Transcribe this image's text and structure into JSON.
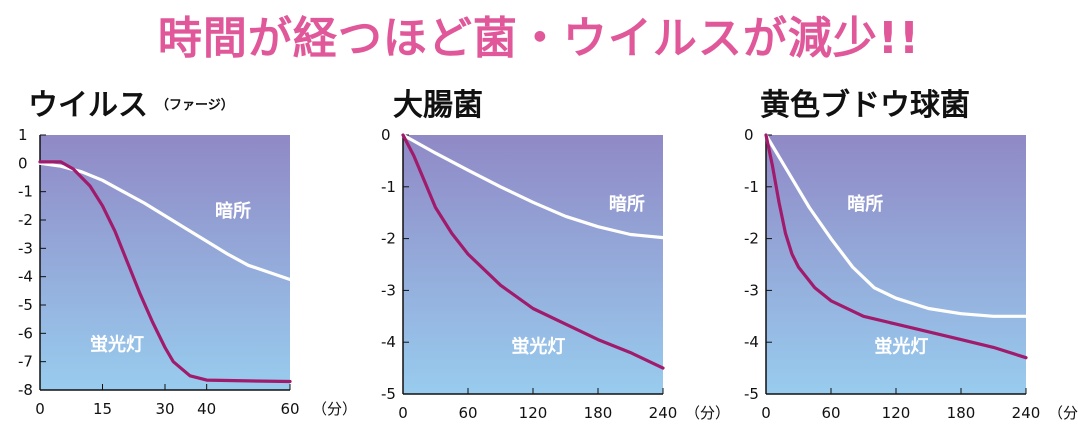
{
  "headline": "時間が経つほど菌・ウイルスが減少!!",
  "colors": {
    "headline": "#e0589a",
    "plot_top": "#9089c6",
    "plot_bottom": "#98ccee",
    "dark_line": "#ffffff",
    "light_line": "#a01b6b"
  },
  "chart_data": [
    {
      "type": "line",
      "title": "ウイルス",
      "subtitle": "（ファージ）",
      "x_unit": "（分）",
      "xlim": [
        0,
        60
      ],
      "ylim": [
        -8,
        1
      ],
      "x_ticks": [
        0,
        15,
        30,
        40,
        60
      ],
      "y_ticks": [
        1,
        0,
        -1,
        -2,
        -3,
        -4,
        -5,
        -6,
        -7,
        -8
      ],
      "series": [
        {
          "name": "暗所",
          "label_at": [
            42,
            -1.9
          ],
          "points": [
            [
              0,
              0
            ],
            [
              5,
              -0.1
            ],
            [
              10,
              -0.3
            ],
            [
              15,
              -0.6
            ],
            [
              20,
              -1.0
            ],
            [
              25,
              -1.4
            ],
            [
              30,
              -1.85
            ],
            [
              35,
              -2.3
            ],
            [
              40,
              -2.75
            ],
            [
              45,
              -3.2
            ],
            [
              50,
              -3.6
            ],
            [
              55,
              -3.85
            ],
            [
              60,
              -4.1
            ]
          ]
        },
        {
          "name": "蛍光灯",
          "label_at": [
            12,
            -6.6
          ],
          "points": [
            [
              0,
              0.05
            ],
            [
              5,
              0.05
            ],
            [
              8,
              -0.2
            ],
            [
              12,
              -0.8
            ],
            [
              15,
              -1.5
            ],
            [
              18,
              -2.4
            ],
            [
              21,
              -3.5
            ],
            [
              24,
              -4.6
            ],
            [
              27,
              -5.6
            ],
            [
              30,
              -6.5
            ],
            [
              32,
              -7.0
            ],
            [
              34,
              -7.25
            ],
            [
              36,
              -7.5
            ],
            [
              40,
              -7.65
            ],
            [
              50,
              -7.68
            ],
            [
              60,
              -7.7
            ]
          ]
        }
      ]
    },
    {
      "type": "line",
      "title": "大腸菌",
      "x_unit": "（分）",
      "xlim": [
        0,
        240
      ],
      "ylim": [
        -5,
        0
      ],
      "x_ticks": [
        0,
        60,
        120,
        180,
        240
      ],
      "y_ticks": [
        0,
        -1,
        -2,
        -3,
        -4,
        -5
      ],
      "series": [
        {
          "name": "暗所",
          "label_at": [
            190,
            -1.45
          ],
          "points": [
            [
              0,
              0
            ],
            [
              30,
              -0.35
            ],
            [
              60,
              -0.68
            ],
            [
              90,
              -1.0
            ],
            [
              120,
              -1.3
            ],
            [
              150,
              -1.57
            ],
            [
              180,
              -1.77
            ],
            [
              210,
              -1.92
            ],
            [
              240,
              -1.98
            ]
          ]
        },
        {
          "name": "蛍光灯",
          "label_at": [
            100,
            -4.2
          ],
          "points": [
            [
              0,
              0
            ],
            [
              10,
              -0.4
            ],
            [
              20,
              -0.9
            ],
            [
              30,
              -1.4
            ],
            [
              45,
              -1.9
            ],
            [
              60,
              -2.3
            ],
            [
              90,
              -2.9
            ],
            [
              120,
              -3.35
            ],
            [
              150,
              -3.65
            ],
            [
              180,
              -3.95
            ],
            [
              210,
              -4.2
            ],
            [
              240,
              -4.5
            ]
          ]
        }
      ]
    },
    {
      "type": "line",
      "title": "黄色ブドウ球菌",
      "x_unit": "（分）",
      "xlim": [
        0,
        240
      ],
      "ylim": [
        -5,
        0
      ],
      "x_ticks": [
        0,
        60,
        120,
        180,
        240
      ],
      "y_ticks": [
        0,
        -1,
        -2,
        -3,
        -4,
        -5
      ],
      "series": [
        {
          "name": "暗所",
          "label_at": [
            75,
            -1.45
          ],
          "points": [
            [
              0,
              0
            ],
            [
              20,
              -0.7
            ],
            [
              40,
              -1.4
            ],
            [
              60,
              -2.0
            ],
            [
              80,
              -2.55
            ],
            [
              100,
              -2.95
            ],
            [
              120,
              -3.15
            ],
            [
              150,
              -3.35
            ],
            [
              180,
              -3.45
            ],
            [
              210,
              -3.5
            ],
            [
              240,
              -3.5
            ]
          ]
        },
        {
          "name": "蛍光灯",
          "label_at": [
            100,
            -4.2
          ],
          "points": [
            [
              0,
              0
            ],
            [
              6,
              -0.6
            ],
            [
              12,
              -1.3
            ],
            [
              18,
              -1.9
            ],
            [
              24,
              -2.3
            ],
            [
              30,
              -2.55
            ],
            [
              45,
              -2.95
            ],
            [
              60,
              -3.2
            ],
            [
              90,
              -3.5
            ],
            [
              120,
              -3.65
            ],
            [
              150,
              -3.8
            ],
            [
              180,
              -3.95
            ],
            [
              210,
              -4.1
            ],
            [
              240,
              -4.3
            ]
          ]
        }
      ]
    }
  ]
}
